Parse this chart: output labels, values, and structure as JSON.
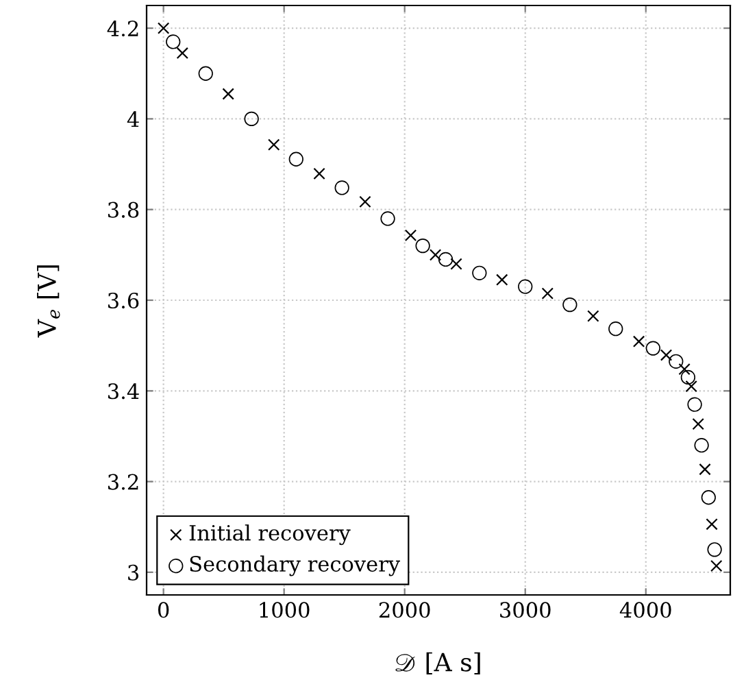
{
  "chart_data": {
    "type": "scatter",
    "xlabel": "𝒟 [A s]",
    "ylabel": "V$_{e}$ [V]",
    "series": [
      {
        "name": "Initial recovery",
        "color": "#000000",
        "marker": "cross",
        "x": [
          0,
          157,
          537,
          915,
          1292,
          1672,
          2050,
          2255,
          2428,
          2807,
          3185,
          3563,
          3942,
          4169,
          4320,
          4377,
          4434,
          4490,
          4547,
          4585
        ],
        "values": [
          4.2,
          4.145,
          4.055,
          3.943,
          3.879,
          3.817,
          3.743,
          3.7,
          3.68,
          3.645,
          3.615,
          3.565,
          3.509,
          3.479,
          3.448,
          3.41,
          3.327,
          3.227,
          3.106,
          3.014
        ]
      },
      {
        "name": "Secondary recovery",
        "color": "#000000",
        "marker": "circle",
        "x": [
          80,
          350,
          730,
          1100,
          1480,
          1860,
          2150,
          2340,
          2620,
          3000,
          3370,
          3750,
          4060,
          4250,
          4350,
          4405,
          4462,
          4520,
          4570
        ],
        "values": [
          4.17,
          4.1,
          4.0,
          3.911,
          3.848,
          3.78,
          3.72,
          3.69,
          3.66,
          3.63,
          3.59,
          3.537,
          3.494,
          3.465,
          3.43,
          3.37,
          3.28,
          3.165,
          3.05
        ]
      }
    ],
    "xlim": [
      -140,
      4700
    ],
    "ylim": [
      2.95,
      4.25
    ],
    "xticks": [
      0,
      1000,
      2000,
      3000,
      4000
    ],
    "yticks": [
      3,
      {
        "value": 3.2,
        "label": "3.2"
      },
      {
        "value": 3.4,
        "label": "3.4"
      },
      {
        "value": 3.6,
        "label": "3.6"
      },
      {
        "value": 3.8,
        "label": "3.8"
      },
      4,
      {
        "value": 4.2,
        "label": "4.2"
      }
    ],
    "grid": true,
    "legend": "bottom left"
  }
}
